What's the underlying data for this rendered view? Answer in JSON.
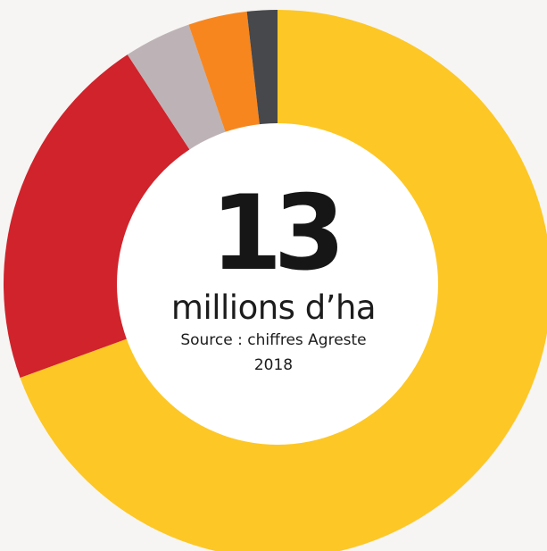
{
  "chart_data": {
    "type": "pie",
    "title": "",
    "categories": [
      "",
      "",
      "",
      "",
      ""
    ],
    "values": [
      70,
      21.5,
      4,
      3.5,
      1.8
    ],
    "colors": [
      "#fdc725",
      "#d0232b",
      "#bdb3b6",
      "#f7861f",
      "#47484b"
    ],
    "center": {
      "value": "13",
      "unit": "millions d’ha",
      "source_line_1": "Source : chiffres Agreste",
      "source_line_2": "2018"
    }
  }
}
